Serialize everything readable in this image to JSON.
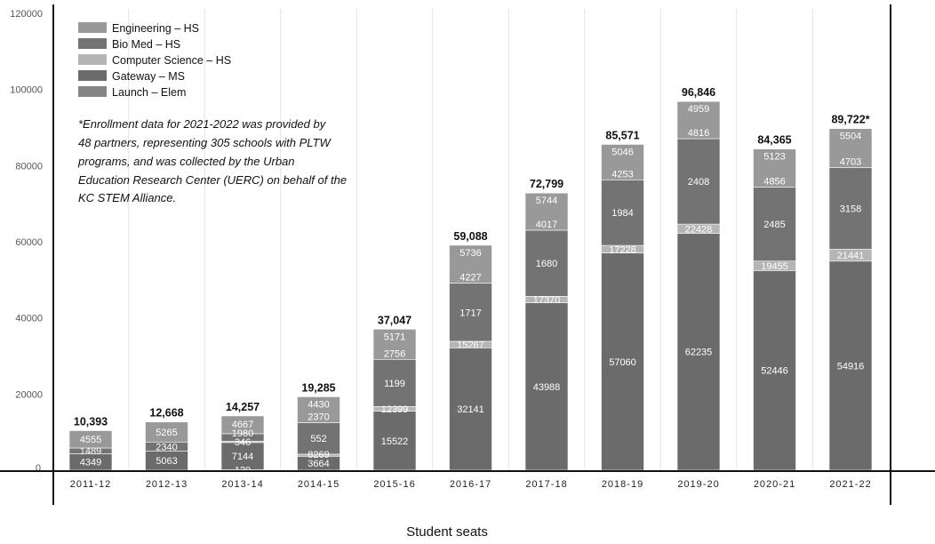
{
  "chart_data": {
    "type": "bar",
    "stacked": true,
    "title": "",
    "xlabel": "Student seats",
    "ylabel": "",
    "ylim": [
      0,
      120000
    ],
    "yticks": [
      "0",
      "20000",
      "40000",
      "60000",
      "80000",
      "100000",
      "120000"
    ],
    "grid": "vertical lines between categories",
    "legend_position": "top-left",
    "categories": [
      "2011-12",
      "2012-13",
      "2013-14",
      "2014-15",
      "2015-16",
      "2016-17",
      "2017-18",
      "2018-19",
      "2019-20",
      "2020-21",
      "2021-22"
    ],
    "totals": [
      "10,393",
      "12,668",
      "14,257",
      "19,285",
      "37,047",
      "59,088",
      "72,799",
      "85,571",
      "96,846",
      "84,365",
      "89,722*"
    ],
    "series": [
      {
        "name": "Launch – Elem",
        "color": "#858585",
        "values": [
          0,
          0,
          120,
          0,
          0,
          0,
          0,
          0,
          0,
          0,
          0
        ]
      },
      {
        "name": "Gateway – MS",
        "color": "#6b6b6b",
        "values": [
          4349,
          5063,
          7144,
          3664,
          15522,
          32141,
          43988,
          57060,
          62235,
          52446,
          54916
        ]
      },
      {
        "name": "Computer Science – HS",
        "color": "#b5b5b5",
        "values": [
          0,
          0,
          346,
          552,
          1199,
          1717,
          1680,
          1984,
          2408,
          2485,
          3158
        ]
      },
      {
        "name": "Bio Med – HS",
        "color": "#737373",
        "values": [
          1489,
          2340,
          1980,
          8269,
          12399,
          15267,
          17370,
          17228,
          22428,
          19455,
          21441
        ]
      },
      {
        "name": "Engineering – HS",
        "color": "#999999",
        "values": [
          4555,
          5265,
          4667,
          6800,
          7927,
          9963,
          9761,
          9299,
          9775,
          9979,
          10207
        ]
      }
    ],
    "data_labels": [
      [
        "4349",
        "1489",
        "4555"
      ],
      [
        "5063",
        "2340",
        "5265"
      ],
      [
        "120",
        "7144",
        "346",
        "1980",
        "4667"
      ],
      [
        "3664",
        "8269",
        "552",
        "2370",
        "4430"
      ],
      [
        "15522",
        "12399",
        "1199",
        "2756",
        "5171"
      ],
      [
        "32141",
        "15267",
        "1717",
        "4227",
        "5736"
      ],
      [
        "43988",
        "17370",
        "1680",
        "4017",
        "5744"
      ],
      [
        "57060",
        "17228",
        "1984",
        "4253",
        "5046"
      ],
      [
        "62235",
        "22428",
        "2408",
        "4816",
        "4959"
      ],
      [
        "52446",
        "19455",
        "2485",
        "4856",
        "5123"
      ],
      [
        "54916",
        "21441",
        "3158",
        "4703",
        "5504"
      ]
    ],
    "legend": [
      "Engineering – HS",
      "Bio Med – HS",
      "Computer Science – HS",
      "Gateway – MS",
      "Launch – Elem"
    ],
    "legend_colors": [
      "#999999",
      "#737373",
      "#b5b5b5",
      "#6b6b6b",
      "#858585"
    ],
    "annotation": [
      "*Enrollment data for 2021-2022 was provided by",
      "48 partners, representing 305 schools with PLTW",
      "programs, and was collected by the Urban",
      "Education Research Center (UERC) on behalf of the",
      "KC STEM Alliance."
    ]
  }
}
